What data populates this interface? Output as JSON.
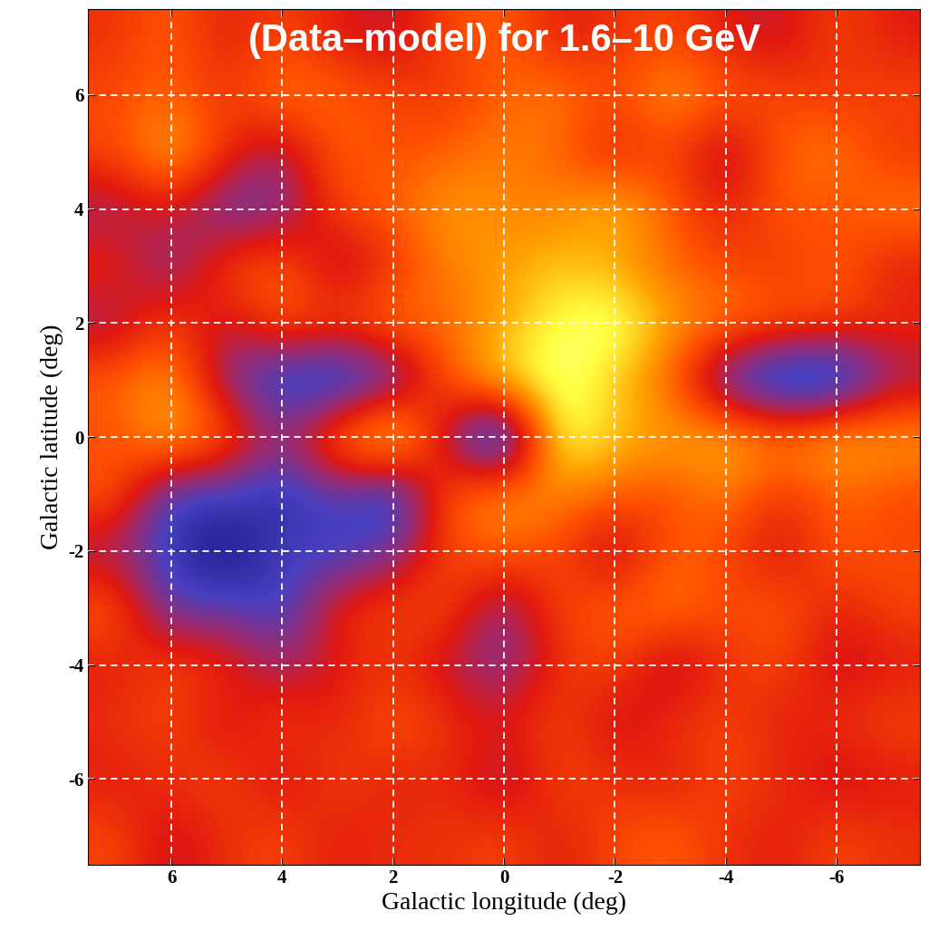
{
  "chart_data": {
    "type": "heatmap",
    "title": "(Data–model) for 1.6–10 GeV",
    "xlabel": "Galactic longitude (deg)",
    "ylabel": "Galactic latitude (deg)",
    "x": [
      7,
      6,
      5,
      4,
      3,
      2,
      1,
      0,
      -1,
      -2,
      -3,
      -4,
      -5,
      -6,
      -7
    ],
    "y": [
      7,
      6,
      5,
      4,
      3,
      2,
      1,
      0,
      -1,
      -2,
      -3,
      -4,
      -5,
      -6,
      -7
    ],
    "values": [
      [
        0.1,
        0.3,
        0.0,
        0.2,
        0.0,
        -0.1,
        0.2,
        0.3,
        0.0,
        0.1,
        0.2,
        0.0,
        -0.1,
        0.2,
        0.0
      ],
      [
        0.2,
        0.3,
        0.1,
        0.4,
        0.3,
        0.2,
        0.1,
        0.3,
        0.4,
        0.2,
        0.5,
        0.3,
        0.2,
        0.1,
        0.2
      ],
      [
        0.2,
        0.6,
        0.1,
        -0.2,
        0.3,
        0.2,
        0.3,
        0.4,
        0.3,
        0.0,
        0.2,
        -0.2,
        0.3,
        0.4,
        0.1
      ],
      [
        -0.2,
        0.0,
        -0.4,
        -0.3,
        0.2,
        0.3,
        0.5,
        0.4,
        0.4,
        0.6,
        0.3,
        0.0,
        0.3,
        0.2,
        0.4
      ],
      [
        0.1,
        -0.3,
        0.2,
        0.3,
        -0.2,
        0.1,
        0.4,
        0.5,
        0.6,
        0.5,
        0.3,
        0.2,
        0.1,
        0.3,
        0.0
      ],
      [
        -0.2,
        0.2,
        -0.1,
        0.3,
        0.2,
        0.4,
        0.3,
        0.5,
        0.8,
        0.9,
        0.5,
        0.4,
        0.3,
        0.2,
        0.1
      ],
      [
        0.3,
        0.5,
        -0.3,
        -0.6,
        -0.7,
        -0.5,
        0.3,
        0.7,
        0.9,
        0.6,
        0.3,
        -0.5,
        -0.8,
        -0.8,
        -0.2
      ],
      [
        0.2,
        0.6,
        0.3,
        -0.2,
        0.4,
        0.9,
        -0.2,
        -1.0,
        0.9,
        0.6,
        0.5,
        0.6,
        0.4,
        0.6,
        0.5
      ],
      [
        0.3,
        -0.5,
        -0.4,
        -0.6,
        -0.3,
        -0.7,
        0.3,
        0.5,
        0.4,
        0.3,
        0.2,
        0.4,
        0.1,
        0.3,
        0.2
      ],
      [
        -0.2,
        -0.5,
        -0.8,
        -0.4,
        -0.5,
        -0.3,
        0.2,
        0.3,
        0.2,
        -0.2,
        0.3,
        0.2,
        -0.1,
        0.3,
        0.2
      ],
      [
        0.3,
        -0.4,
        -0.3,
        -0.5,
        0.1,
        0.2,
        0.2,
        -0.3,
        0.2,
        0.3,
        0.4,
        0.2,
        0.3,
        0.0,
        0.2
      ],
      [
        0.0,
        0.2,
        0.1,
        -0.2,
        0.0,
        0.1,
        -0.1,
        -0.3,
        0.1,
        0.2,
        -0.2,
        0.1,
        0.2,
        -0.1,
        0.0
      ],
      [
        0.1,
        0.2,
        -0.1,
        0.2,
        0.0,
        0.3,
        0.1,
        0.0,
        0.2,
        -0.1,
        0.1,
        0.2,
        0.0,
        0.1,
        0.2
      ],
      [
        0.0,
        0.1,
        0.2,
        -0.1,
        0.2,
        0.0,
        0.1,
        -0.2,
        0.2,
        0.1,
        0.0,
        0.2,
        0.1,
        -0.1,
        0.0
      ],
      [
        0.2,
        -0.1,
        0.1,
        0.2,
        0.0,
        0.1,
        0.1,
        0.2,
        0.0,
        0.2,
        0.3,
        0.1,
        0.0,
        0.2,
        0.1
      ]
    ],
    "value_range": [
      -1,
      1
    ],
    "xlim": [
      7.5,
      -7.5
    ],
    "ylim": [
      -7.5,
      7.5
    ],
    "xticks": [
      6,
      4,
      2,
      0,
      -2,
      -4,
      -6
    ],
    "yticks": [
      -6,
      -4,
      -2,
      0,
      2,
      4,
      6
    ],
    "grid": true
  }
}
